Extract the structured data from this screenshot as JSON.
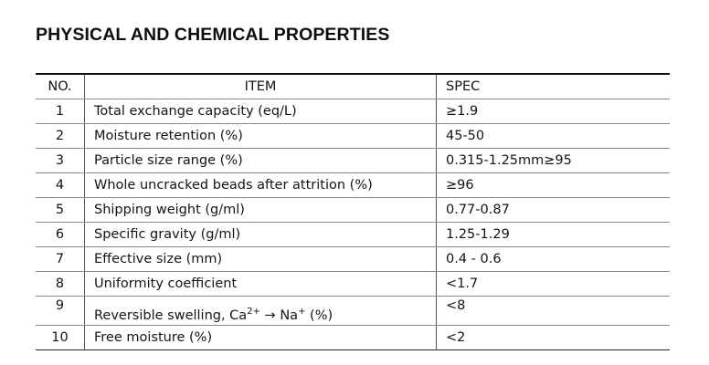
{
  "title": "PHYSICAL AND CHEMICAL PROPERTIES",
  "table": {
    "headers": {
      "no": "NO.",
      "item": "ITEM",
      "spec": "SPEC"
    },
    "rows": [
      {
        "no": "1",
        "item": "Total exchange capacity (eq/L)",
        "spec": "≥1.9"
      },
      {
        "no": "2",
        "item": "Moisture retention (%)",
        "spec": "45-50"
      },
      {
        "no": "3",
        "item": "Particle size range (%)",
        "spec": "0.315-1.25mm≥95"
      },
      {
        "no": "4",
        "item": "Whole uncracked beads after attrition (%)",
        "spec": "≥96"
      },
      {
        "no": "5",
        "item": "Shipping weight (g/ml)",
        "spec": "0.77-0.87"
      },
      {
        "no": "6",
        "item": "Specific gravity (g/ml)",
        "spec": "1.25-1.29"
      },
      {
        "no": "7",
        "item": "Effective size (mm)",
        "spec": "0.4 - 0.6"
      },
      {
        "no": "8",
        "item": "Uniformity coefficient",
        "spec": "<1.7"
      },
      {
        "no": "9",
        "item": "Reversible swelling, Ca2+ → Na+ (%)",
        "item_parts": {
          "prefix": "Reversible swelling, Ca",
          "sup1": "2+",
          "middle": " → Na",
          "sup2": "+",
          "suffix": " (%)"
        },
        "spec": "<8"
      },
      {
        "no": "10",
        "item": "Free moisture (%)",
        "spec": "<2"
      }
    ]
  }
}
